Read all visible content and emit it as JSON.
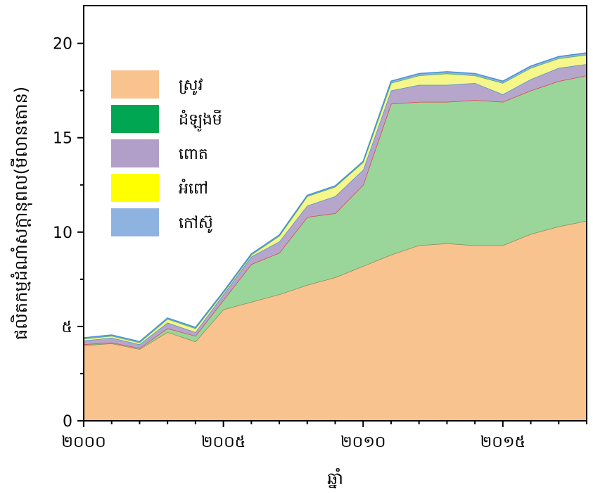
{
  "chart_data": {
    "type": "area",
    "stacked": true,
    "xlabel": "ឆ្នាំ",
    "ylabel": "ផលិតកម្មដំណាំសក្ដានុពល(មីលានតោន)",
    "xlim": [
      2000,
      2018
    ],
    "ylim": [
      0,
      22
    ],
    "x_ticks": [
      2000,
      2005,
      2010,
      2015
    ],
    "x_tick_labels": [
      "២០០០",
      "២០០៥",
      "២០១០",
      "២០១៥"
    ],
    "y_ticks": [
      0,
      5,
      10,
      15,
      20
    ],
    "y_tick_labels": [
      "0",
      "៥",
      "10",
      "15",
      "20"
    ],
    "legend_position": "top-left",
    "x": [
      2000,
      2001,
      2002,
      2003,
      2004,
      2005,
      2006,
      2007,
      2008,
      2009,
      2010,
      2011,
      2012,
      2013,
      2014,
      2015,
      2016,
      2017,
      2018
    ],
    "series": [
      {
        "name": "ស្រូវ",
        "color": "#f8c38e",
        "line": "#8a8a5a",
        "values": [
          4.0,
          4.1,
          3.8,
          4.7,
          4.2,
          5.9,
          6.3,
          6.7,
          7.2,
          7.6,
          8.2,
          8.8,
          9.3,
          9.4,
          9.3,
          9.3,
          9.9,
          10.3,
          10.6
        ]
      },
      {
        "name": "ដំឡូងមី",
        "color": "#9ad59a",
        "line": "#e0414a",
        "values": [
          0.05,
          0.05,
          0.05,
          0.2,
          0.3,
          0.5,
          2.0,
          2.2,
          3.6,
          3.4,
          4.3,
          8.0,
          7.6,
          7.5,
          7.7,
          7.6,
          7.6,
          7.7,
          7.7
        ]
      },
      {
        "name": "ពោត",
        "color": "#b7a6cc",
        "line": "#4a90d9",
        "values": [
          0.2,
          0.25,
          0.2,
          0.3,
          0.2,
          0.3,
          0.4,
          0.6,
          0.6,
          0.9,
          0.8,
          0.7,
          0.9,
          0.9,
          0.9,
          0.4,
          0.6,
          0.7,
          0.6
        ]
      },
      {
        "name": "អំពៅ",
        "color": "#f6f68a",
        "line": "#4caf50",
        "values": [
          0.1,
          0.1,
          0.1,
          0.2,
          0.2,
          0.1,
          0.1,
          0.3,
          0.5,
          0.5,
          0.4,
          0.4,
          0.5,
          0.6,
          0.4,
          0.6,
          0.6,
          0.5,
          0.5
        ]
      },
      {
        "name": "កៅស៊ូ",
        "color": "#8fb3e0",
        "line": "#4a90d9",
        "values": [
          0.05,
          0.05,
          0.05,
          0.05,
          0.05,
          0.05,
          0.05,
          0.05,
          0.05,
          0.05,
          0.05,
          0.1,
          0.1,
          0.1,
          0.1,
          0.1,
          0.1,
          0.1,
          0.1
        ]
      }
    ],
    "legend_swatches": [
      "#f8c38e",
      "#00a651",
      "#b19fc7",
      "#ffff00",
      "#8fb3e0"
    ]
  }
}
